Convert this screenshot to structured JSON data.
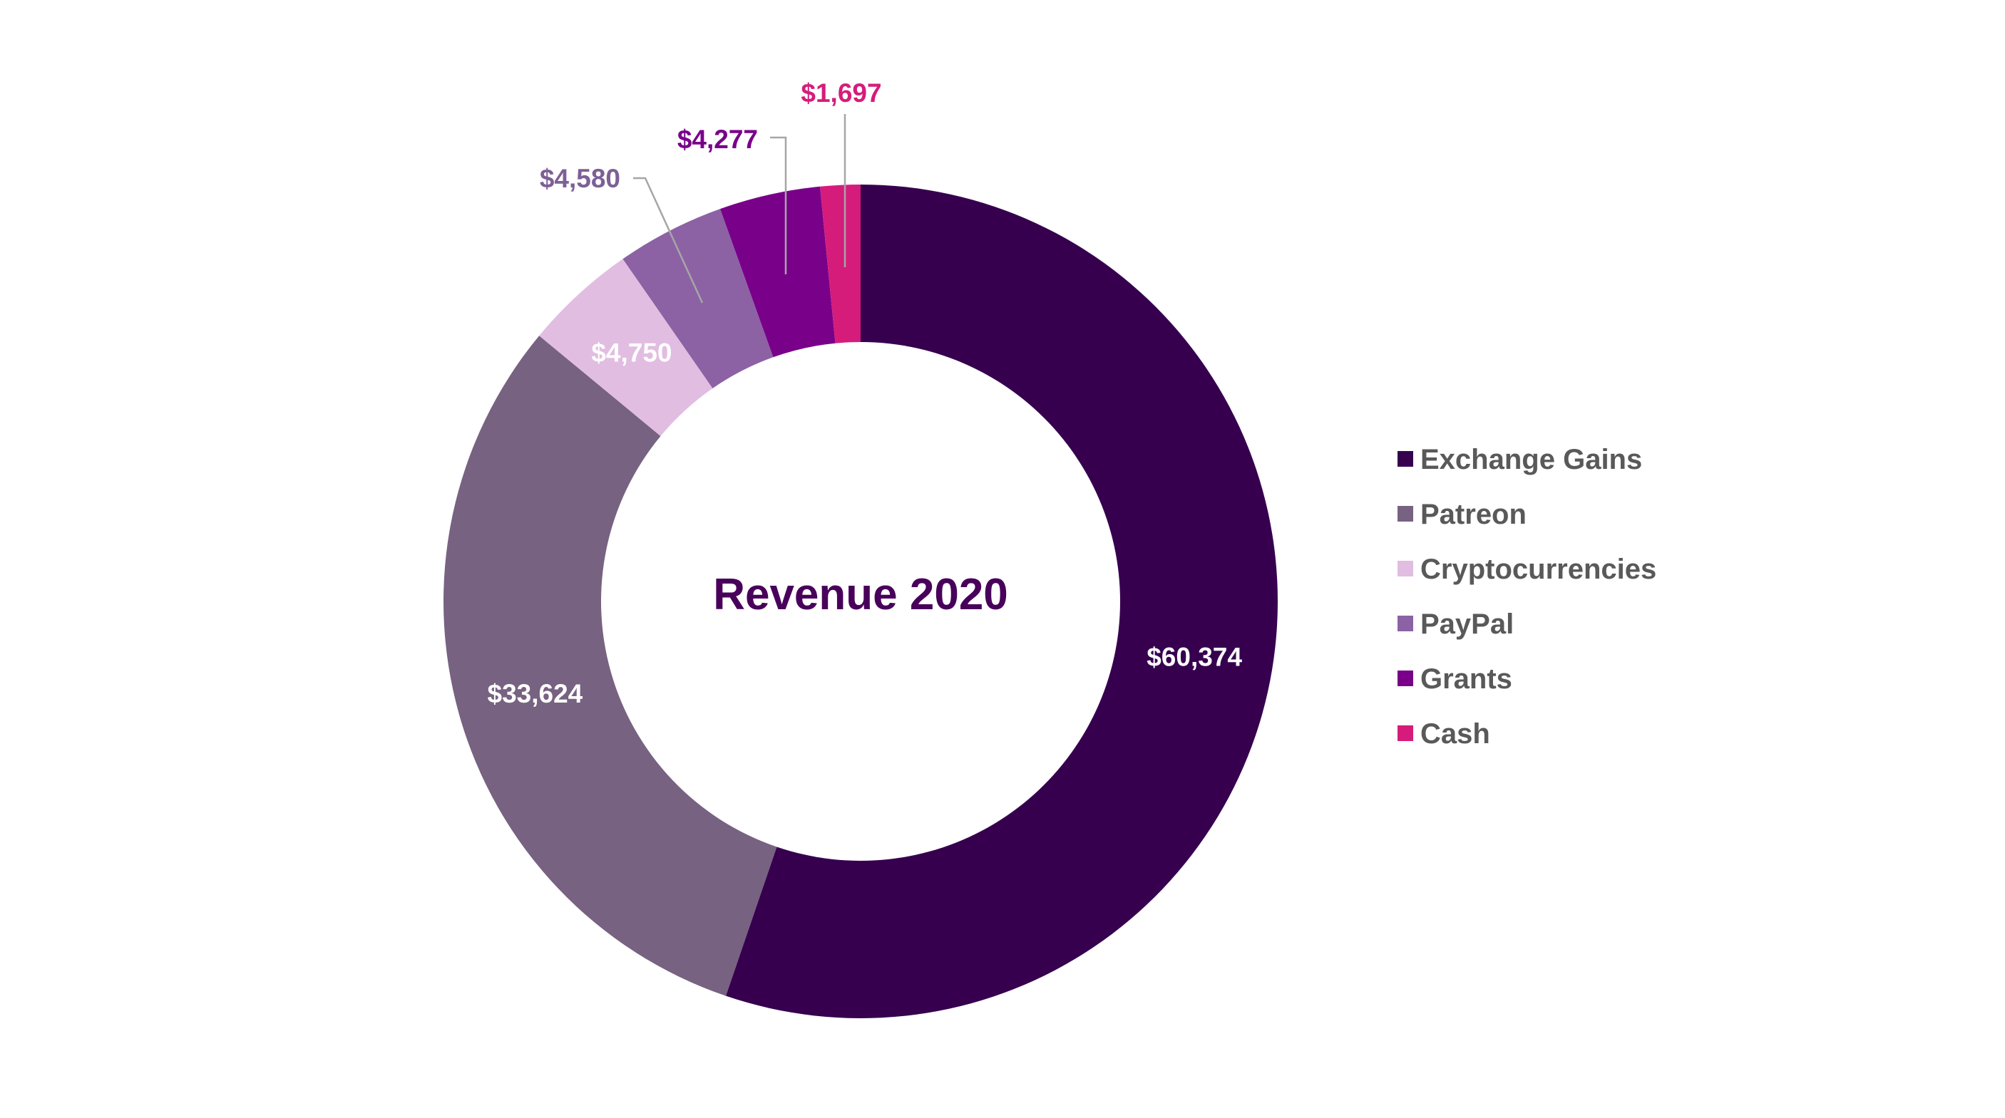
{
  "chart_data": {
    "type": "pie",
    "title": "Revenue 2020",
    "style": "donut",
    "legend_position": "right",
    "categories": [
      "Exchange Gains",
      "Patreon",
      "Cryptocurrencies",
      "PayPal",
      "Grants",
      "Cash"
    ],
    "values": [
      60374,
      33624,
      4750,
      4580,
      4277,
      1697
    ],
    "labels": [
      "$60,374",
      "$33,624",
      "$4,750",
      "$4,580",
      "$4,277",
      "$1,697"
    ],
    "colors": [
      "#36004f",
      "#776281",
      "#e1bde1",
      "#8c62a4",
      "#790089",
      "#d51c7b"
    ]
  }
}
